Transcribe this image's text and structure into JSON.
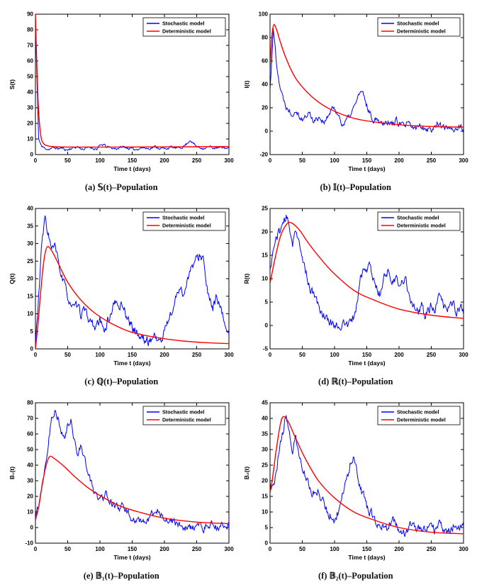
{
  "figure": {
    "background": "#ffffff",
    "line_colors": {
      "stochastic": "#0000ff",
      "deterministic": "#ff0000"
    }
  },
  "chart_data": [
    {
      "type": "line",
      "caption": "(a) 𝕊(t)–Population",
      "xlabel": "Time t (days)",
      "ylabel": "S(t)",
      "xlim": [
        0,
        300
      ],
      "ylim": [
        0,
        90
      ],
      "xticks": [
        0,
        50,
        100,
        150,
        200,
        250,
        300
      ],
      "yticks": [
        0,
        10,
        20,
        30,
        40,
        50,
        60,
        70,
        80,
        90
      ],
      "legend": [
        "Stochastic model",
        "Deterministic model"
      ],
      "colors": {
        "stochastic": "#0000ff",
        "deterministic": "#ff0000"
      },
      "series": [
        {
          "name": "Stochastic model",
          "style": "noisy",
          "x_step": 5,
          "noise_amp": 0.7,
          "seed": 11,
          "values": [
            83,
            10,
            5,
            4,
            3.5,
            4,
            4.5,
            3.8,
            4.2,
            3.5,
            3,
            4,
            4.5,
            5,
            4,
            3.5,
            4.2,
            4.8,
            4,
            3.6,
            5.5,
            6.5,
            5,
            4.5,
            4,
            3.8,
            4.4,
            5,
            4.6,
            4,
            3.5,
            3.2,
            4,
            4.5,
            4.2,
            3.8,
            4.4,
            5,
            4.5,
            4,
            3.6,
            4.2,
            4.8,
            4.4,
            4,
            4.5,
            5.5,
            7,
            9.5,
            7,
            5,
            4.5,
            4.2,
            4.6,
            5,
            4.4,
            4,
            4.2,
            4.5,
            4.3,
            4
          ]
        },
        {
          "name": "Deterministic model",
          "style": "smooth",
          "x": [
            0,
            2,
            4,
            6,
            8,
            10,
            14,
            20,
            30,
            60,
            120,
            180,
            240,
            300
          ],
          "y": [
            90,
            60,
            36,
            21,
            13,
            9,
            6.5,
            5.5,
            5,
            4.8,
            4.8,
            4.9,
            5,
            5.2
          ]
        }
      ]
    },
    {
      "type": "line",
      "caption": "(b) 𝕀(t)–Population",
      "xlabel": "Time t (days)",
      "ylabel": "I(t)",
      "xlim": [
        0,
        300
      ],
      "ylim": [
        -20,
        100
      ],
      "xticks": [
        0,
        50,
        100,
        150,
        200,
        250,
        300
      ],
      "yticks": [
        -20,
        0,
        20,
        40,
        60,
        80,
        100
      ],
      "legend": [
        "Stochastic model",
        "Deterministic model"
      ],
      "colors": {
        "stochastic": "#0000ff",
        "deterministic": "#ff0000"
      },
      "series": [
        {
          "name": "Stochastic model",
          "style": "noisy",
          "x_step": 5,
          "noise_amp": 2.4,
          "seed": 22,
          "values": [
            35,
            87,
            60,
            40,
            28,
            22,
            18,
            15,
            20,
            14,
            10,
            12,
            16,
            11,
            9,
            13,
            10,
            8,
            12,
            18,
            20,
            15,
            8,
            6,
            10,
            14,
            20,
            28,
            33,
            30,
            22,
            15,
            10,
            12,
            9,
            7,
            10,
            8,
            6,
            9,
            7,
            5,
            4,
            6,
            3,
            2,
            4,
            5,
            3,
            2,
            1,
            3,
            8,
            5,
            2,
            3,
            4,
            2,
            3,
            2,
            2
          ]
        },
        {
          "name": "Deterministic model",
          "style": "smooth",
          "x": [
            0,
            3,
            6,
            10,
            15,
            25,
            40,
            60,
            80,
            100,
            130,
            160,
            200,
            250,
            300
          ],
          "y": [
            52,
            82,
            91,
            87,
            78,
            62,
            45,
            32,
            23,
            17,
            11,
            8,
            5.5,
            4,
            3.5
          ]
        }
      ]
    },
    {
      "type": "line",
      "caption": "(c) ℚ(t)–Population",
      "xlabel": "Time t (days)",
      "ylabel": "Q(t)",
      "xlim": [
        0,
        300
      ],
      "ylim": [
        0,
        40
      ],
      "xticks": [
        0,
        50,
        100,
        150,
        200,
        250,
        300
      ],
      "yticks": [
        0,
        5,
        10,
        15,
        20,
        25,
        30,
        35,
        40
      ],
      "legend": [
        "Stochastic model",
        "Deterministic model"
      ],
      "colors": {
        "stochastic": "#0000ff",
        "deterministic": "#ff0000"
      },
      "series": [
        {
          "name": "Stochastic model",
          "style": "noisy",
          "x_step": 5,
          "noise_amp": 1.2,
          "seed": 33,
          "values": [
            1,
            15,
            30,
            37,
            33,
            28,
            29,
            25,
            21,
            18,
            15,
            13,
            11,
            12,
            10,
            11,
            9,
            8,
            7,
            6,
            8,
            5,
            7,
            9,
            12,
            13,
            12,
            13,
            10,
            8,
            6,
            5,
            4,
            3,
            2.5,
            2,
            3,
            4,
            2.5,
            2,
            5,
            8,
            10,
            12,
            16,
            18,
            15,
            20,
            22,
            24,
            25,
            27,
            26,
            18,
            13,
            12,
            14,
            12,
            9,
            7,
            5
          ]
        },
        {
          "name": "Deterministic model",
          "style": "smooth",
          "x": [
            0,
            4,
            8,
            13,
            18,
            25,
            35,
            50,
            70,
            90,
            115,
            145,
            180,
            220,
            260,
            300
          ],
          "y": [
            0,
            7,
            16,
            25,
            29,
            28,
            24.5,
            19,
            14,
            10.5,
            7.5,
            5,
            3.5,
            2.4,
            1.8,
            1.5
          ]
        }
      ]
    },
    {
      "type": "line",
      "caption": "(d) ℝ(t)–Population",
      "xlabel": "Time t (days)",
      "ylabel": "R(t)",
      "xlim": [
        0,
        300
      ],
      "ylim": [
        -5,
        25
      ],
      "xticks": [
        0,
        50,
        100,
        150,
        200,
        250,
        300
      ],
      "yticks": [
        -5,
        0,
        5,
        10,
        15,
        20,
        25
      ],
      "legend": [
        "Stochastic model",
        "Deterministic model"
      ],
      "colors": {
        "stochastic": "#0000ff",
        "deterministic": "#ff0000"
      },
      "series": [
        {
          "name": "Stochastic model",
          "style": "noisy",
          "x_step": 5,
          "noise_amp": 0.9,
          "seed": 44,
          "values": [
            12,
            16,
            19,
            20,
            22,
            23,
            21,
            18,
            21,
            17,
            14,
            12,
            9,
            7,
            6,
            4,
            3,
            2,
            1,
            0.5,
            0,
            0.3,
            0,
            0.2,
            0,
            0.5,
            2,
            5,
            10,
            12,
            11,
            13,
            10,
            8,
            7,
            9,
            12,
            11,
            9,
            10,
            8,
            9,
            10,
            7,
            5,
            4,
            3,
            4,
            2,
            3,
            4,
            3,
            5,
            6,
            4,
            3,
            5,
            4,
            3,
            4,
            3
          ]
        },
        {
          "name": "Deterministic model",
          "style": "smooth",
          "x": [
            0,
            8,
            16,
            25,
            32,
            45,
            60,
            80,
            100,
            130,
            160,
            200,
            250,
            300
          ],
          "y": [
            9,
            14.5,
            19,
            21.5,
            22,
            20.5,
            17.5,
            14,
            11,
            7.5,
            5.5,
            3.5,
            2.2,
            1.5
          ]
        }
      ]
    },
    {
      "type": "line",
      "caption": "(e) 𝔹₁(t)–Population",
      "xlabel": "Time t (days)",
      "ylabel": "B₁(t)",
      "xlim": [
        0,
        300
      ],
      "ylim": [
        -10,
        80
      ],
      "xticks": [
        0,
        50,
        100,
        150,
        200,
        250,
        300
      ],
      "yticks": [
        -10,
        0,
        10,
        20,
        30,
        40,
        50,
        60,
        70,
        80
      ],
      "legend": [
        "Stochastic model",
        "Deterministic model"
      ],
      "colors": {
        "stochastic": "#0000ff",
        "deterministic": "#ff0000"
      },
      "series": [
        {
          "name": "Stochastic model",
          "style": "noisy",
          "x_step": 5,
          "noise_amp": 2.2,
          "seed": 55,
          "values": [
            5,
            15,
            28,
            40,
            55,
            70,
            76,
            70,
            60,
            56,
            65,
            68,
            58,
            48,
            52,
            46,
            38,
            30,
            24,
            20,
            18,
            20,
            22,
            19,
            15,
            13,
            12,
            13,
            11,
            9,
            6,
            4,
            3,
            5,
            4,
            3,
            8,
            10,
            12,
            9,
            7,
            6,
            4,
            3,
            2,
            1,
            0.5,
            0,
            -0.5,
            0,
            0.5,
            1,
            0,
            0.5,
            1,
            1.5,
            1,
            0.5,
            1,
            1.5,
            1
          ]
        },
        {
          "name": "Deterministic model",
          "style": "smooth",
          "x": [
            0,
            5,
            10,
            16,
            22,
            30,
            45,
            60,
            80,
            100,
            130,
            160,
            200,
            250,
            300
          ],
          "y": [
            5,
            13,
            26,
            39,
            45.5,
            44,
            39,
            33,
            26,
            20.5,
            14,
            10,
            6,
            3.5,
            2.5
          ]
        }
      ]
    },
    {
      "type": "line",
      "caption": "(f) 𝔹₂(t)–Population",
      "xlabel": "Time t (days)",
      "ylabel": "B₂(t)",
      "xlim": [
        0,
        300
      ],
      "ylim": [
        0,
        45
      ],
      "xticks": [
        0,
        50,
        100,
        150,
        200,
        250,
        300
      ],
      "yticks": [
        0,
        5,
        10,
        15,
        20,
        25,
        30,
        35,
        40,
        45
      ],
      "legend": [
        "Stochastic model",
        "Deterministic model"
      ],
      "colors": {
        "stochastic": "#0000ff",
        "deterministic": "#ff0000"
      },
      "series": [
        {
          "name": "Stochastic model",
          "style": "noisy",
          "x_step": 5,
          "noise_amp": 1.3,
          "seed": 66,
          "values": [
            20,
            18,
            25,
            30,
            35,
            42,
            36,
            30,
            33,
            28,
            24,
            22,
            18,
            15,
            17,
            18,
            14,
            12,
            10,
            9,
            8,
            10,
            14,
            18,
            22,
            26,
            27,
            22,
            18,
            15,
            12,
            10,
            8,
            7,
            6,
            5,
            4,
            6,
            8,
            7,
            5,
            4,
            3,
            5,
            7,
            6,
            4,
            5,
            4,
            6,
            5,
            4,
            5,
            6,
            5,
            4,
            5,
            6,
            5,
            5,
            6
          ]
        },
        {
          "name": "Deterministic model",
          "style": "smooth",
          "x": [
            0,
            4,
            9,
            15,
            20,
            28,
            40,
            55,
            75,
            100,
            130,
            160,
            200,
            250,
            300
          ],
          "y": [
            16,
            21,
            29,
            37,
            40.5,
            39,
            33.5,
            27,
            20,
            14.5,
            10,
            7.5,
            5,
            3.5,
            3
          ]
        }
      ]
    }
  ]
}
